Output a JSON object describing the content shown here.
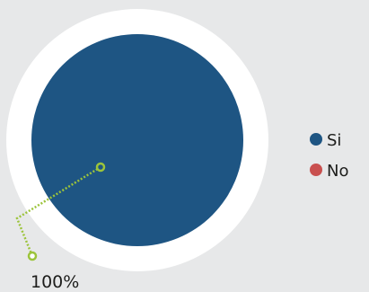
{
  "chart_data": {
    "type": "pie",
    "categories": [
      "Si",
      "No"
    ],
    "values": [
      100,
      0
    ],
    "value_labels": [
      "100%"
    ],
    "colors": [
      "#1e5583",
      "#c9504f"
    ],
    "ring_color": "#ffffff",
    "leader_color": "#9cc43b",
    "legend_position": "right"
  }
}
